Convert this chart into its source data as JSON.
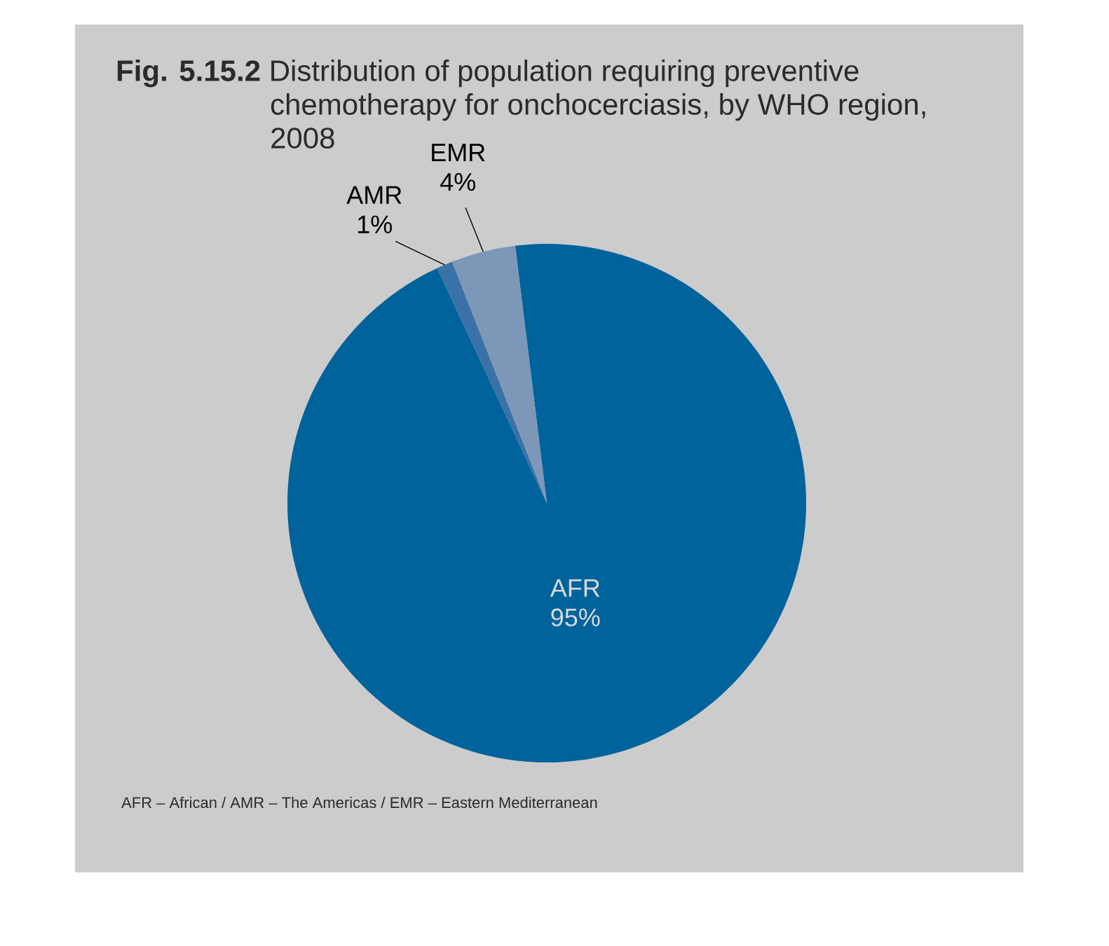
{
  "chart_data": {
    "type": "pie",
    "title": "**Fig. 5.15.2** Distribution of population requiring preventive chemotherapy for onchocerciasis, by WHO region, 2008",
    "categories": [
      "AFR",
      "AMR",
      "EMR"
    ],
    "values": [
      95,
      1,
      4
    ],
    "value_labels": [
      "95%",
      "1%",
      "4%"
    ],
    "colors": [
      "#00639c",
      "#3a72a8",
      "#7d97b8"
    ],
    "annotations": [
      "AFR – African / AMR – The Americas / EMR – Eastern Mediterranean"
    ]
  }
}
